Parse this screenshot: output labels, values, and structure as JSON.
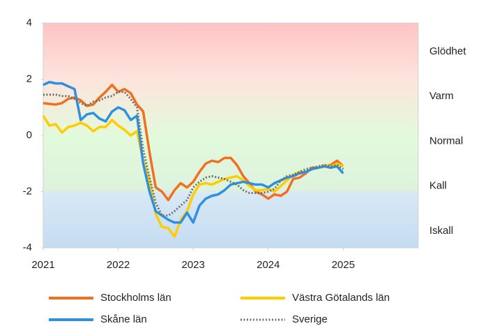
{
  "chart_data": {
    "type": "line",
    "annotations": [
      "Glödhet",
      "Varm",
      "Normal",
      "Kall",
      "Iskall"
    ],
    "x": [
      2021.0,
      2021.083,
      2021.167,
      2021.25,
      2021.333,
      2021.417,
      2021.5,
      2021.583,
      2021.667,
      2021.75,
      2021.833,
      2021.917,
      2022.0,
      2022.083,
      2022.167,
      2022.25,
      2022.333,
      2022.417,
      2022.5,
      2022.583,
      2022.667,
      2022.75,
      2022.833,
      2022.917,
      2023.0,
      2023.083,
      2023.167,
      2023.25,
      2023.333,
      2023.417,
      2023.5,
      2023.583,
      2023.667,
      2023.75,
      2023.833,
      2023.917,
      2024.0,
      2024.083,
      2024.167,
      2024.25,
      2024.333,
      2024.417,
      2024.5,
      2024.583,
      2024.667,
      2024.75,
      2024.833,
      2024.917,
      2025.0
    ],
    "series": [
      {
        "name": "Stockholms län",
        "color": "#f07020",
        "dash": false,
        "values": [
          1.15,
          1.12,
          1.1,
          1.15,
          1.3,
          1.35,
          1.25,
          1.05,
          1.1,
          1.35,
          1.55,
          1.8,
          1.55,
          1.65,
          1.5,
          1.1,
          0.85,
          -0.6,
          -1.85,
          -2.0,
          -2.3,
          -1.95,
          -1.7,
          -1.85,
          -1.65,
          -1.3,
          -1.0,
          -0.9,
          -0.95,
          -0.8,
          -0.8,
          -1.05,
          -1.45,
          -1.7,
          -2.0,
          -2.1,
          -2.25,
          -2.1,
          -2.15,
          -2.0,
          -1.55,
          -1.5,
          -1.35,
          -1.15,
          -1.15,
          -1.1,
          -1.05,
          -0.9,
          -1.1
        ]
      },
      {
        "name": "Västra Götalands län",
        "color": "#ffcc00",
        "dash": false,
        "values": [
          0.7,
          0.35,
          0.4,
          0.1,
          0.3,
          0.35,
          0.45,
          0.35,
          0.15,
          0.3,
          0.3,
          0.55,
          0.35,
          0.2,
          0.0,
          0.15,
          -0.9,
          -1.6,
          -2.8,
          -3.25,
          -3.3,
          -3.6,
          -3.0,
          -2.7,
          -2.1,
          -1.75,
          -1.7,
          -1.75,
          -1.65,
          -1.55,
          -1.5,
          -1.45,
          -1.6,
          -1.8,
          -1.95,
          -1.95,
          -1.9,
          -2.0,
          -1.8,
          -1.6,
          -1.4,
          -1.3,
          -1.3,
          -1.2,
          -1.15,
          -1.05,
          -1.1,
          -1.0,
          -1.1
        ]
      },
      {
        "name": "Skåne län",
        "color": "#3090e0",
        "dash": false,
        "values": [
          1.8,
          1.9,
          1.85,
          1.85,
          1.75,
          1.65,
          0.55,
          0.75,
          0.8,
          0.6,
          0.5,
          0.85,
          1.0,
          0.9,
          0.55,
          0.7,
          -1.0,
          -2.0,
          -2.7,
          -2.85,
          -3.0,
          -3.1,
          -3.1,
          -2.75,
          -3.1,
          -2.5,
          -2.25,
          -2.15,
          -2.1,
          -1.95,
          -1.75,
          -1.7,
          -1.65,
          -1.7,
          -1.75,
          -1.75,
          -1.85,
          -1.7,
          -1.6,
          -1.5,
          -1.45,
          -1.35,
          -1.3,
          -1.2,
          -1.15,
          -1.1,
          -1.15,
          -1.1,
          -1.35
        ]
      },
      {
        "name": "Sverige",
        "color": "#707070",
        "dash": true,
        "values": [
          1.45,
          1.45,
          1.45,
          1.4,
          1.4,
          1.3,
          1.15,
          1.05,
          1.2,
          1.25,
          1.35,
          1.4,
          1.55,
          1.55,
          1.3,
          1.0,
          -0.5,
          -1.5,
          -2.4,
          -2.85,
          -2.85,
          -2.7,
          -2.5,
          -2.3,
          -1.85,
          -1.65,
          -1.5,
          -1.45,
          -1.5,
          -1.55,
          -1.65,
          -1.75,
          -1.95,
          -2.05,
          -2.05,
          -2.05,
          -2.0,
          -1.9,
          -1.6,
          -1.45,
          -1.4,
          -1.3,
          -1.2,
          -1.15,
          -1.1,
          -1.05,
          -1.1,
          -1.05,
          -1.2
        ]
      }
    ],
    "xlim": [
      2021,
      2026
    ],
    "xticks": [
      2021,
      2022,
      2023,
      2024,
      2025
    ],
    "ylim": [
      -4,
      4
    ],
    "yticks": [
      -4,
      -2,
      0,
      2,
      4
    ]
  }
}
